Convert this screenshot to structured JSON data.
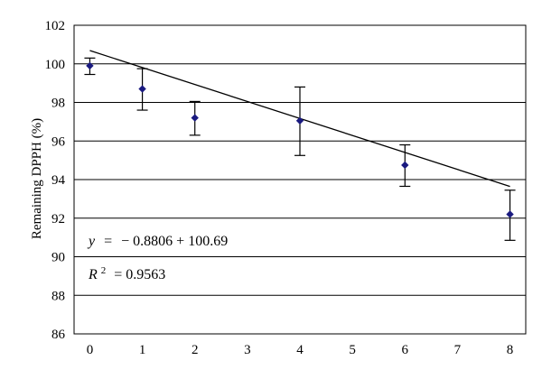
{
  "chart_data": {
    "type": "scatter",
    "title": "",
    "xlabel": "",
    "ylabel": "Remaining DPPH (%)",
    "xlim": [
      -0.3,
      8.3
    ],
    "ylim": [
      86,
      102
    ],
    "xticks": [
      0,
      1,
      2,
      3,
      4,
      5,
      6,
      7,
      8
    ],
    "yticks": [
      86,
      88,
      90,
      92,
      94,
      96,
      98,
      100,
      102
    ],
    "grid": "horizontal",
    "legend": "none",
    "series": [
      {
        "points": [
          {
            "x": 0,
            "y": 99.9,
            "err_low": 99.45,
            "err_high": 100.3
          },
          {
            "x": 1,
            "y": 98.7,
            "err_low": 97.6,
            "err_high": 99.75
          },
          {
            "x": 2,
            "y": 97.2,
            "err_low": 96.3,
            "err_high": 98.05
          },
          {
            "x": 4,
            "y": 97.05,
            "err_low": 95.25,
            "err_high": 98.8
          },
          {
            "x": 6,
            "y": 94.75,
            "err_low": 93.65,
            "err_high": 95.8
          },
          {
            "x": 8,
            "y": 92.2,
            "err_low": 90.85,
            "err_high": 93.45
          }
        ],
        "marker_color": "#1a1a80"
      }
    ],
    "trendline": {
      "slope": -0.8806,
      "intercept": 100.69,
      "x_range": [
        0,
        8
      ],
      "color": "#000000"
    },
    "annotations": {
      "equation": {
        "y": "y",
        "eq": "=",
        "rest": "− 0.8806 + 100.69"
      },
      "r2": {
        "r": "R",
        "sup": "2",
        "rest": "= 0.9563"
      }
    }
  }
}
